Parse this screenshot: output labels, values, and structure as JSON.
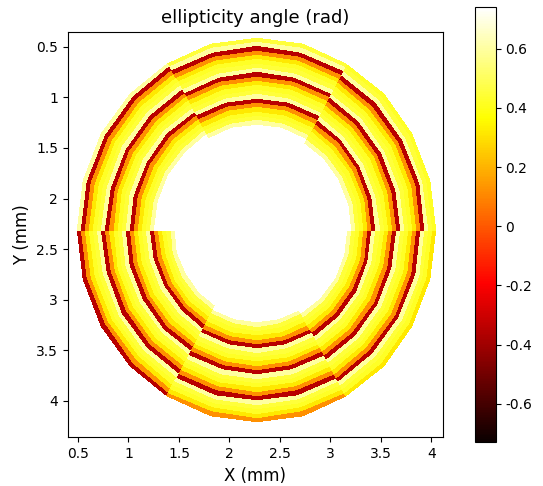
{
  "chart_data": {
    "type": "heatmap",
    "title": "ellipticity angle (rad)",
    "x_label": "X (mm)",
    "y_label": "Y (mm)",
    "xlim": [
      0.4,
      4.11
    ],
    "ylim": [
      4.36,
      0.35
    ],
    "xticks": [
      0.5,
      1,
      1.5,
      2,
      2.5,
      3,
      3.5,
      4
    ],
    "yticks": [
      0.5,
      1,
      1.5,
      2,
      2.5,
      3,
      3.5,
      4
    ],
    "center": [
      2.27,
      2.31
    ],
    "semi_axes": [
      1.79,
      1.91
    ],
    "theta_edges": [
      0,
      15,
      30,
      45,
      60,
      75,
      90,
      105,
      120,
      135,
      150,
      165,
      180,
      195,
      210,
      225,
      240,
      255,
      270,
      285,
      300,
      315,
      330,
      345,
      360
    ],
    "r_edges": [
      0,
      0.46,
      0.4825,
      0.505,
      0.5275,
      0.55,
      0.5725,
      0.595,
      0.6175,
      0.64,
      0.6625,
      0.685,
      0.7075,
      0.73,
      0.7525,
      0.775,
      0.7975,
      0.82,
      0.8425,
      0.865,
      0.8875,
      0.91,
      0.9325,
      0.955,
      0.9775,
      1.0,
      1.6
    ],
    "cells": [
      [
        0.74,
        0.6,
        0.45,
        0.42,
        0.32,
        0.12,
        -0.35,
        0.6,
        0.45,
        0.42,
        0.32,
        0.12,
        -0.35,
        0.6,
        0.45,
        0.42,
        0.32,
        0.12,
        -0.35,
        0.6,
        0.45,
        0.42,
        0.32,
        0.12,
        -0.35,
        0.74
      ],
      [
        0.74,
        0.6,
        0.45,
        0.42,
        0.32,
        0.12,
        -0.35,
        0.6,
        0.45,
        0.42,
        0.32,
        0.12,
        -0.35,
        0.6,
        0.45,
        0.42,
        0.32,
        0.12,
        -0.35,
        0.6,
        0.45,
        0.42,
        0.32,
        0.12,
        -0.35,
        0.74
      ],
      [
        0.74,
        0.6,
        0.45,
        0.42,
        0.32,
        0.12,
        -0.35,
        0.6,
        0.45,
        0.42,
        0.32,
        0.12,
        -0.35,
        0.6,
        0.45,
        0.42,
        0.32,
        0.12,
        -0.35,
        0.6,
        0.45,
        0.42,
        0.32,
        0.12,
        -0.35,
        0.74
      ],
      [
        0.74,
        0.6,
        0.45,
        0.42,
        0.32,
        0.12,
        -0.35,
        0.6,
        0.45,
        0.42,
        0.32,
        0.12,
        -0.35,
        0.6,
        0.45,
        0.42,
        0.32,
        0.12,
        -0.35,
        0.6,
        0.45,
        0.42,
        0.32,
        0.12,
        -0.35,
        0.74
      ],
      [
        0.74,
        0.74,
        0.6,
        0.45,
        0.42,
        0.32,
        0.12,
        -0.35,
        0.6,
        0.45,
        0.42,
        0.32,
        0.12,
        -0.35,
        0.6,
        0.45,
        0.42,
        0.32,
        0.12,
        -0.35,
        0.6,
        0.45,
        0.42,
        0.32,
        0.12,
        0.74
      ],
      [
        0.74,
        0.74,
        0.6,
        0.45,
        0.42,
        0.32,
        0.12,
        -0.35,
        0.6,
        0.45,
        0.42,
        0.32,
        0.12,
        -0.35,
        0.6,
        0.45,
        0.42,
        0.32,
        0.12,
        -0.35,
        0.6,
        0.45,
        0.42,
        0.32,
        0.12,
        0.74
      ],
      [
        0.74,
        0.74,
        0.6,
        0.45,
        0.42,
        0.32,
        0.12,
        -0.35,
        0.6,
        0.45,
        0.42,
        0.32,
        0.12,
        -0.35,
        0.6,
        0.45,
        0.42,
        0.32,
        0.12,
        -0.35,
        0.6,
        0.45,
        0.42,
        0.32,
        0.12,
        0.74
      ],
      [
        0.74,
        0.74,
        0.6,
        0.45,
        0.42,
        0.32,
        0.12,
        -0.35,
        0.6,
        0.45,
        0.42,
        0.32,
        0.12,
        -0.35,
        0.6,
        0.45,
        0.42,
        0.32,
        0.12,
        -0.35,
        0.6,
        0.45,
        0.42,
        0.32,
        0.12,
        0.74
      ],
      [
        0.74,
        0.74,
        0.74,
        0.6,
        0.45,
        0.42,
        0.32,
        0.12,
        -0.35,
        0.6,
        0.45,
        0.42,
        0.32,
        0.12,
        -0.35,
        0.6,
        0.45,
        0.42,
        0.32,
        0.12,
        -0.35,
        0.6,
        0.45,
        0.42,
        0.32,
        0.74
      ],
      [
        0.74,
        0.74,
        0.74,
        0.6,
        0.45,
        0.42,
        0.32,
        0.12,
        -0.35,
        0.6,
        0.45,
        0.42,
        0.32,
        0.12,
        -0.35,
        0.6,
        0.45,
        0.42,
        0.32,
        0.12,
        -0.35,
        0.6,
        0.45,
        0.42,
        0.32,
        0.74
      ],
      [
        0.74,
        0.74,
        0.74,
        0.6,
        0.45,
        0.42,
        0.32,
        0.12,
        -0.35,
        0.6,
        0.45,
        0.42,
        0.32,
        0.12,
        -0.35,
        0.6,
        0.45,
        0.42,
        0.32,
        0.12,
        -0.35,
        0.6,
        0.45,
        0.42,
        0.32,
        0.74
      ],
      [
        0.74,
        0.74,
        0.74,
        0.6,
        0.45,
        0.42,
        0.32,
        0.12,
        -0.35,
        0.6,
        0.45,
        0.42,
        0.32,
        0.12,
        -0.35,
        0.6,
        0.45,
        0.42,
        0.32,
        0.12,
        -0.35,
        0.6,
        0.45,
        0.42,
        0.32,
        0.74
      ],
      [
        0.74,
        0.74,
        0.74,
        0.74,
        0.6,
        0.45,
        0.42,
        0.32,
        0.12,
        -0.35,
        0.6,
        0.45,
        0.42,
        0.32,
        0.12,
        -0.35,
        0.6,
        0.45,
        0.42,
        0.32,
        0.12,
        -0.35,
        0.6,
        0.45,
        0.42,
        0.74
      ],
      [
        0.74,
        0.74,
        0.74,
        0.74,
        0.6,
        0.45,
        0.42,
        0.32,
        0.12,
        -0.35,
        0.6,
        0.45,
        0.42,
        0.32,
        0.12,
        -0.35,
        0.6,
        0.45,
        0.42,
        0.32,
        0.12,
        -0.35,
        0.6,
        0.45,
        0.42,
        0.74
      ],
      [
        0.74,
        0.74,
        0.74,
        0.74,
        0.6,
        0.45,
        0.42,
        0.32,
        0.12,
        -0.35,
        0.6,
        0.45,
        0.42,
        0.32,
        0.12,
        -0.35,
        0.6,
        0.45,
        0.42,
        0.32,
        0.12,
        -0.35,
        0.6,
        0.45,
        0.42,
        0.74
      ],
      [
        0.74,
        0.74,
        0.74,
        0.74,
        0.6,
        0.45,
        0.42,
        0.32,
        0.12,
        -0.35,
        0.6,
        0.45,
        0.42,
        0.32,
        0.12,
        -0.35,
        0.6,
        0.45,
        0.42,
        0.32,
        0.12,
        -0.35,
        0.6,
        0.45,
        0.42,
        0.74
      ],
      [
        0.74,
        0.74,
        0.74,
        0.74,
        0.74,
        0.6,
        0.45,
        0.42,
        0.32,
        0.12,
        -0.35,
        0.6,
        0.45,
        0.42,
        0.32,
        0.12,
        -0.35,
        0.6,
        0.45,
        0.42,
        0.32,
        0.12,
        -0.35,
        0.6,
        0.45,
        0.74
      ],
      [
        0.74,
        0.74,
        0.74,
        0.74,
        0.74,
        0.6,
        0.45,
        0.42,
        0.32,
        0.12,
        -0.35,
        0.6,
        0.45,
        0.42,
        0.32,
        0.12,
        -0.35,
        0.6,
        0.45,
        0.42,
        0.32,
        0.12,
        -0.35,
        0.6,
        0.45,
        0.74
      ],
      [
        0.74,
        0.74,
        0.74,
        0.74,
        0.74,
        0.6,
        0.45,
        0.42,
        0.32,
        0.12,
        -0.35,
        0.6,
        0.45,
        0.42,
        0.32,
        0.12,
        -0.35,
        0.6,
        0.45,
        0.42,
        0.32,
        0.12,
        -0.35,
        0.6,
        0.45,
        0.74
      ],
      [
        0.74,
        0.74,
        0.74,
        0.74,
        0.74,
        0.6,
        0.45,
        0.42,
        0.32,
        0.12,
        -0.35,
        0.6,
        0.45,
        0.42,
        0.32,
        0.12,
        -0.35,
        0.6,
        0.45,
        0.42,
        0.32,
        0.12,
        -0.35,
        0.6,
        0.45,
        0.74
      ],
      [
        0.74,
        0.74,
        0.74,
        0.74,
        0.74,
        0.74,
        0.6,
        0.45,
        0.42,
        0.32,
        0.12,
        -0.35,
        0.6,
        0.45,
        0.42,
        0.32,
        0.12,
        -0.35,
        0.6,
        0.45,
        0.42,
        0.32,
        0.12,
        -0.35,
        0.6,
        0.74
      ],
      [
        0.74,
        0.74,
        0.74,
        0.74,
        0.74,
        0.74,
        0.6,
        0.45,
        0.42,
        0.32,
        0.12,
        -0.35,
        0.6,
        0.45,
        0.42,
        0.32,
        0.12,
        -0.35,
        0.6,
        0.45,
        0.42,
        0.32,
        0.12,
        -0.35,
        0.6,
        0.74
      ],
      [
        0.74,
        0.74,
        0.74,
        0.74,
        0.74,
        0.74,
        0.6,
        0.45,
        0.42,
        0.32,
        0.12,
        -0.35,
        0.6,
        0.45,
        0.42,
        0.32,
        0.12,
        -0.35,
        0.6,
        0.45,
        0.42,
        0.32,
        0.12,
        -0.35,
        0.6,
        0.74
      ],
      [
        0.74,
        0.74,
        0.74,
        0.74,
        0.74,
        0.74,
        0.6,
        0.45,
        0.42,
        0.32,
        0.12,
        -0.35,
        0.6,
        0.45,
        0.42,
        0.32,
        0.12,
        -0.35,
        0.6,
        0.45,
        0.42,
        0.32,
        0.12,
        -0.35,
        0.6,
        0.74
      ]
    ],
    "colorbar": {
      "range": [
        -0.73,
        0.74
      ],
      "ticks": [
        -0.6,
        -0.4,
        -0.2,
        0,
        0.2,
        0.4,
        0.6
      ]
    }
  }
}
